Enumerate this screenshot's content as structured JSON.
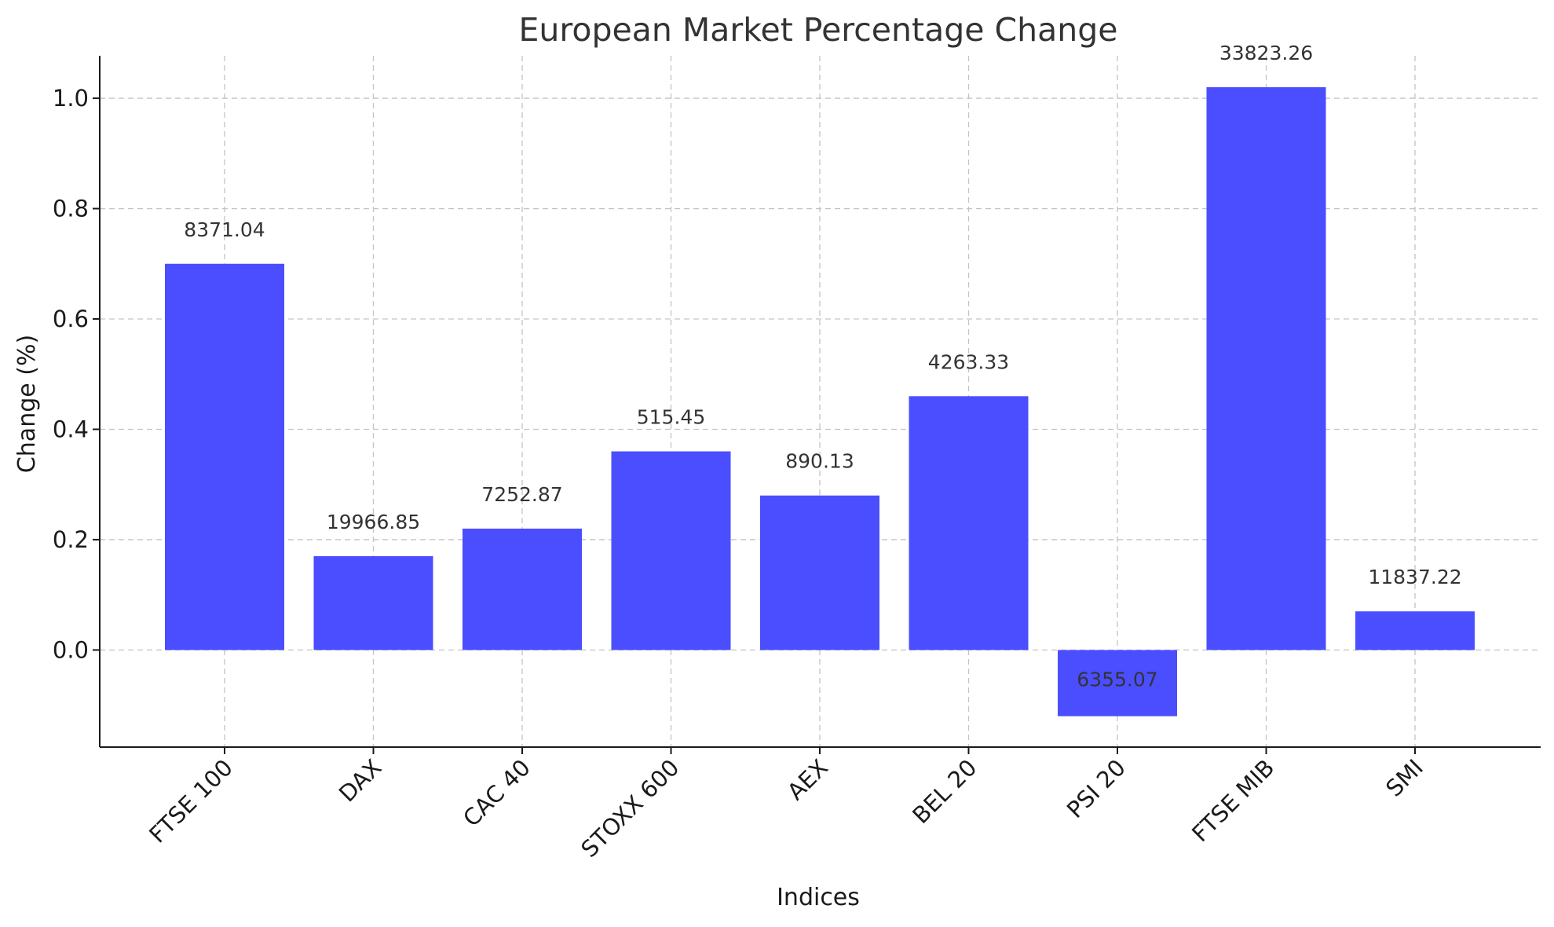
{
  "chart_data": {
    "type": "bar",
    "title": "European Market Percentage Change",
    "xlabel": "Indices",
    "ylabel": "Change (%)",
    "categories": [
      "FTSE 100",
      "DAX",
      "CAC 40",
      "STOXX 600",
      "AEX",
      "BEL 20",
      "PSI 20",
      "FTSE MIB",
      "SMI"
    ],
    "values": [
      0.7,
      0.17,
      0.22,
      0.36,
      0.28,
      0.46,
      -0.12,
      1.02,
      0.07
    ],
    "data_labels": [
      "8371.04",
      "19966.85",
      "7252.87",
      "515.45",
      "890.13",
      "4263.33",
      "6355.07",
      "33823.26",
      "11837.22"
    ],
    "yticks": [
      0.0,
      0.2,
      0.4,
      0.6,
      0.8,
      1.0
    ],
    "ytick_labels": [
      "0.0",
      "0.2",
      "0.4",
      "0.6",
      "0.8",
      "1.0"
    ],
    "ylim": [
      -0.176,
      1.077
    ],
    "grid": true,
    "bar_color": "#4a4eff"
  }
}
